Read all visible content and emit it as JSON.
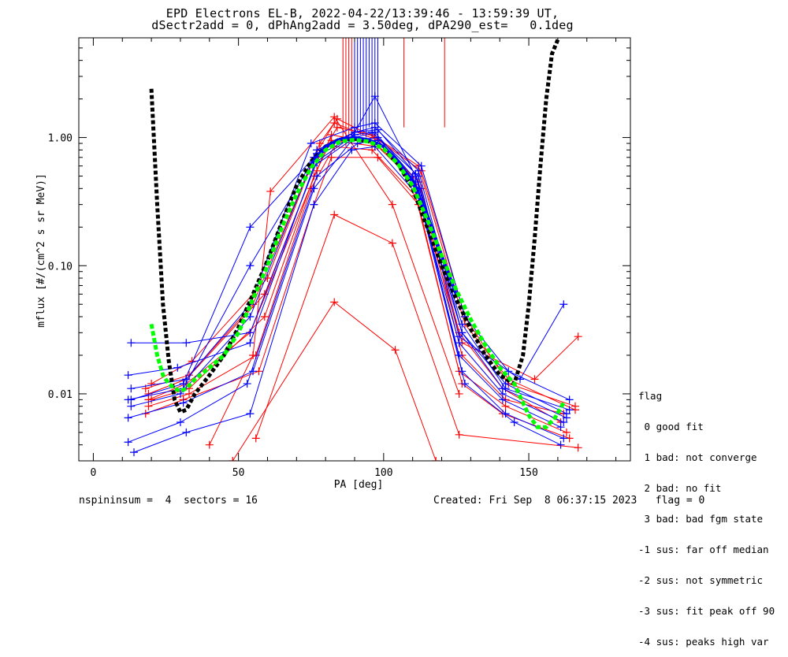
{
  "title_line1": "EPD Electrons EL-B, 2022-04-22/13:39:46 - 13:59:39 UT,",
  "title_line2": "dSectr2add = 0, dPhAng2add = 3.50deg, dPA290_est=   0.1deg",
  "footer_left": "nspininsum =  4  sectors = 16",
  "footer_right": "Created: Fri Sep  8 06:37:15 2023   flag = 0",
  "legend": {
    "title": "flag",
    "items": [
      " 0 good fit",
      " 1 bad: not converge",
      " 2 bad: no fit",
      " 3 bad: bad fgm state",
      "-1 sus: far off median",
      "-2 sus: not symmetric",
      "-3 sus: fit peak off 90",
      "-4 sus: peaks high var"
    ]
  },
  "colors": {
    "red": "#ff0000",
    "blue": "#0000ff",
    "green": "#00ff00",
    "black": "#000000"
  },
  "chart_data": {
    "type": "line",
    "xlabel": "PA [deg]",
    "ylabel": "mflux [#/(cm^2 s sr MeV)]",
    "xlim": [
      -5,
      185
    ],
    "ylim": [
      0.003,
      6
    ],
    "yscale": "log",
    "xticks": [
      0,
      50,
      100,
      150
    ],
    "yticks": [
      0.01,
      0.1,
      1.0
    ],
    "ytick_labels": [
      "0.01",
      "0.10",
      "1.00"
    ],
    "series": [
      {
        "color": "red",
        "x": [
          19,
          32,
          54,
          77,
          82,
          97,
          110,
          126,
          141,
          161
        ],
        "y": [
          0.009,
          0.012,
          0.03,
          0.55,
          1.05,
          0.9,
          0.5,
          0.03,
          0.011,
          0.006
        ]
      },
      {
        "color": "red",
        "x": [
          18,
          33,
          55,
          76,
          83,
          98,
          112,
          127,
          142,
          162
        ],
        "y": [
          0.011,
          0.014,
          0.05,
          0.7,
          1.3,
          0.95,
          0.45,
          0.02,
          0.009,
          0.007
        ]
      },
      {
        "color": "red",
        "x": [
          19,
          33,
          56,
          75,
          83,
          96,
          111,
          126,
          142,
          163
        ],
        "y": [
          0.008,
          0.01,
          0.02,
          0.4,
          0.85,
          0.8,
          0.35,
          0.015,
          0.008,
          0.005
        ]
      },
      {
        "color": "red",
        "x": [
          20,
          34,
          60,
          78,
          84,
          97,
          113,
          128,
          143,
          166
        ],
        "y": [
          0.012,
          0.018,
          0.08,
          0.9,
          1.4,
          1.0,
          0.55,
          0.04,
          0.012,
          0.008
        ]
      },
      {
        "color": "red",
        "x": [
          18,
          31,
          57,
          76,
          82,
          98,
          112,
          127,
          141,
          164
        ],
        "y": [
          0.007,
          0.009,
          0.015,
          0.3,
          0.7,
          0.7,
          0.3,
          0.012,
          0.007,
          0.0045
        ]
      },
      {
        "color": "red",
        "x": [
          19,
          32,
          59,
          77,
          84,
          96,
          112,
          128,
          143,
          166
        ],
        "y": [
          0.01,
          0.013,
          0.06,
          0.65,
          1.2,
          1.05,
          0.6,
          0.035,
          0.013,
          0.0075
        ]
      },
      {
        "color": "red",
        "x": [
          40,
          55,
          61,
          83,
          103,
          126
        ],
        "y": [
          0.004,
          0.02,
          0.38,
          1.45,
          0.3,
          0.01
        ]
      },
      {
        "color": "red",
        "x": [
          56,
          83,
          103,
          126,
          167
        ],
        "y": [
          0.0045,
          0.25,
          0.15,
          0.0048,
          0.0038
        ]
      },
      {
        "color": "red",
        "x": [
          48,
          83,
          104,
          118
        ],
        "y": [
          0.003,
          0.052,
          0.022,
          0.003
        ]
      },
      {
        "color": "red",
        "x": [
          20,
          33,
          59,
          76,
          82,
          98,
          113,
          127,
          152,
          167
        ],
        "y": [
          0.009,
          0.011,
          0.04,
          0.5,
          0.95,
          0.85,
          0.4,
          0.025,
          0.013,
          0.028
        ]
      },
      {
        "color": "blue",
        "x": [
          12,
          29,
          54,
          76,
          90,
          97,
          110,
          126,
          141,
          162
        ],
        "y": [
          0.014,
          0.016,
          0.025,
          0.6,
          1.0,
          1.1,
          0.5,
          0.025,
          0.01,
          0.006
        ]
      },
      {
        "color": "blue",
        "x": [
          13,
          30,
          54,
          77,
          90,
          97,
          112,
          127,
          142,
          163
        ],
        "y": [
          0.008,
          0.01,
          0.04,
          0.8,
          1.1,
          1.2,
          0.55,
          0.03,
          0.012,
          0.007
        ]
      },
      {
        "color": "blue",
        "x": [
          12,
          31,
          55,
          76,
          89,
          98,
          111,
          126,
          141,
          161
        ],
        "y": [
          0.0065,
          0.0085,
          0.015,
          0.4,
          0.95,
          1.0,
          0.45,
          0.02,
          0.009,
          0.0055
        ]
      },
      {
        "color": "blue",
        "x": [
          13,
          32,
          54,
          75,
          90,
          97,
          113,
          128,
          143,
          164
        ],
        "y": [
          0.011,
          0.013,
          0.05,
          0.9,
          1.2,
          1.3,
          0.6,
          0.04,
          0.015,
          0.009
        ]
      },
      {
        "color": "blue",
        "x": [
          12,
          30,
          53,
          77,
          91,
          98,
          112,
          127,
          142,
          162
        ],
        "y": [
          0.0042,
          0.006,
          0.012,
          0.5,
          0.9,
          0.95,
          0.4,
          0.015,
          0.007,
          0.0045
        ]
      },
      {
        "color": "blue",
        "x": [
          13,
          31,
          54,
          76,
          89,
          97,
          111,
          127,
          141,
          163
        ],
        "y": [
          0.009,
          0.012,
          0.2,
          0.7,
          1.0,
          2.1,
          0.5,
          0.03,
          0.011,
          0.0065
        ]
      },
      {
        "color": "blue",
        "x": [
          13,
          32,
          54,
          77,
          90,
          96,
          112,
          126,
          147,
          162
        ],
        "y": [
          0.025,
          0.025,
          0.03,
          0.65,
          1.05,
          1.1,
          0.5,
          0.028,
          0.013,
          0.05
        ]
      },
      {
        "color": "blue",
        "x": [
          14,
          32,
          54,
          76,
          89,
          97,
          112,
          128,
          145,
          161
        ],
        "y": [
          0.0035,
          0.005,
          0.007,
          0.3,
          0.8,
          0.85,
          0.35,
          0.012,
          0.006,
          0.004
        ]
      },
      {
        "color": "blue",
        "x": [
          12,
          31,
          54,
          77,
          90,
          98,
          111,
          127,
          142,
          164
        ],
        "y": [
          0.009,
          0.011,
          0.1,
          0.75,
          1.1,
          1.15,
          0.52,
          0.035,
          0.011,
          0.0075
        ]
      }
    ],
    "fits": [
      {
        "name": "",
        "color": "black",
        "style": "dotted-thick",
        "x": [
          20,
          22,
          24,
          26,
          28,
          30,
          32,
          35,
          40,
          45,
          50,
          55,
          60,
          65,
          70,
          75,
          80,
          85,
          90,
          95,
          100,
          105,
          110,
          115,
          120,
          125,
          130,
          135,
          140,
          145,
          148,
          150,
          152,
          154,
          156,
          158,
          160
        ],
        "y": [
          2.4,
          0.3,
          0.05,
          0.018,
          0.009,
          0.0072,
          0.0075,
          0.01,
          0.014,
          0.02,
          0.033,
          0.06,
          0.11,
          0.22,
          0.42,
          0.65,
          0.85,
          0.97,
          0.98,
          0.93,
          0.82,
          0.62,
          0.4,
          0.2,
          0.1,
          0.055,
          0.032,
          0.02,
          0.014,
          0.012,
          0.02,
          0.05,
          0.16,
          0.6,
          2.0,
          4.5,
          5.8
        ]
      },
      {
        "name": "",
        "color": "blue",
        "style": "solid-thick",
        "x": [
          75,
          80,
          85,
          90,
          95,
          100,
          105,
          110,
          115,
          120,
          125
        ],
        "y": [
          0.62,
          0.85,
          0.97,
          1.0,
          0.96,
          0.85,
          0.65,
          0.45,
          0.25,
          0.12,
          0.06
        ]
      },
      {
        "name": "",
        "color": "green",
        "style": "dashed-thick",
        "x": [
          20,
          22,
          24,
          26,
          28,
          30,
          32,
          35,
          40,
          45,
          50,
          55,
          60,
          65,
          70,
          75,
          80,
          85,
          90,
          95,
          100,
          105,
          110,
          115,
          120,
          125,
          130,
          135,
          140,
          145,
          150,
          153,
          156,
          159,
          162
        ],
        "y": [
          0.035,
          0.02,
          0.014,
          0.012,
          0.011,
          0.0105,
          0.011,
          0.013,
          0.016,
          0.02,
          0.03,
          0.055,
          0.1,
          0.2,
          0.36,
          0.58,
          0.8,
          0.93,
          0.96,
          0.93,
          0.82,
          0.62,
          0.42,
          0.23,
          0.12,
          0.065,
          0.038,
          0.024,
          0.016,
          0.012,
          0.0068,
          0.0055,
          0.0055,
          0.0065,
          0.0085
        ]
      }
    ],
    "spikes": [
      {
        "color": "red",
        "x": [
          86,
          87,
          88,
          89,
          107,
          121
        ],
        "y_from": [
          0.9,
          0.85,
          0.95,
          0.9,
          1.2,
          1.2
        ]
      },
      {
        "color": "blue",
        "x": [
          90,
          91,
          92,
          93,
          94,
          95,
          96,
          97,
          98
        ],
        "y_from": [
          1.0,
          1.1,
          1.05,
          1.1,
          1.0,
          1.2,
          1.1,
          1.0,
          1.2
        ]
      }
    ]
  }
}
